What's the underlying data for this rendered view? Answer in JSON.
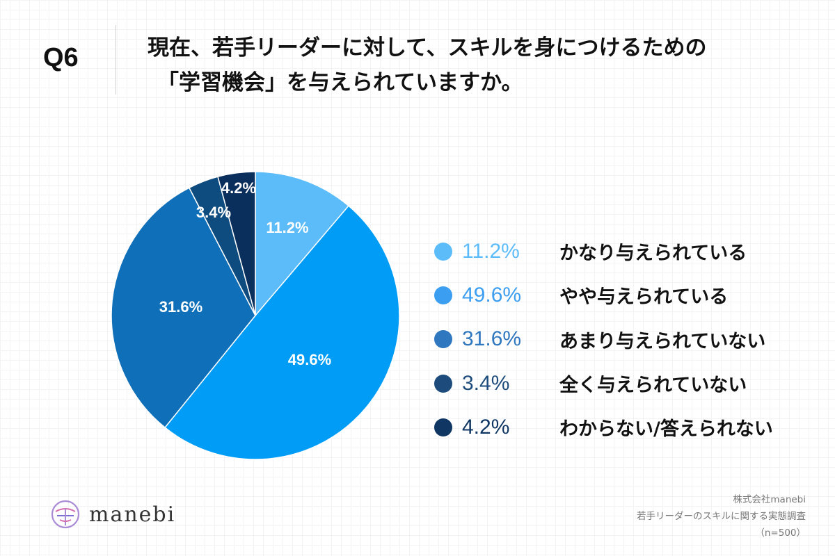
{
  "question": {
    "label": "Q6",
    "title_line1": "現在、若手リーダーに対して、スキルを身につけるための",
    "title_line2": "「学習機会」を与えられていますか。"
  },
  "chart_data": {
    "type": "pie",
    "start": "12 o'clock",
    "direction": "clockwise",
    "slices": [
      {
        "label": "かなり与えられている",
        "value": 11.2,
        "display": "11.2%",
        "color": "#5bbcf9",
        "legend_color": "#5bbcf9"
      },
      {
        "label": "やや与えられている",
        "value": 49.6,
        "display": "49.6%",
        "color": "#009cf5",
        "legend_color": "#3c9ef0"
      },
      {
        "label": "あまり与えられていない",
        "value": 31.6,
        "display": "31.6%",
        "color": "#0f6fb8",
        "legend_color": "#2f77bf"
      },
      {
        "label": "全く与えられていない",
        "value": 3.4,
        "display": "3.4%",
        "color": "#0e4b7f",
        "legend_color": "#1d4c7c"
      },
      {
        "label": "わからない/答えられない",
        "value": 4.2,
        "display": "4.2%",
        "color": "#0a2f5c",
        "legend_color": "#103764"
      }
    ]
  },
  "logo": {
    "text": "manebi"
  },
  "source": {
    "company": "株式会社manebi",
    "survey": "若手リーダーのスキルに関する実態調査",
    "sample": "（n=500）"
  }
}
